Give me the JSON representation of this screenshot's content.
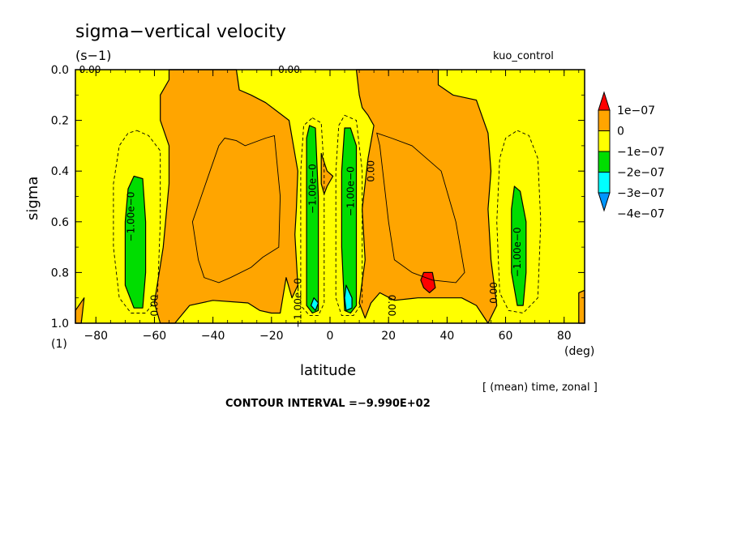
{
  "chart_data": {
    "type": "heatmap",
    "title": "sigma−vertical velocity",
    "units": "(s−1)",
    "experiment": "kuo_control",
    "xlabel": "latitude",
    "xunits": "(deg)",
    "ylabel": "sigma",
    "yunits": "(1)",
    "xlim": [
      -87,
      87
    ],
    "ylim": [
      0.0,
      1.0
    ],
    "y_inverted": true,
    "xticks": [
      -80,
      -60,
      -40,
      -20,
      0,
      20,
      40,
      60,
      80
    ],
    "yticks": [
      0.0,
      0.2,
      0.4,
      0.6,
      0.8,
      1.0
    ],
    "xtick_labels": [
      "−80",
      "−60",
      "−40",
      "−20",
      "0",
      "20",
      "40",
      "60",
      "80"
    ],
    "ytick_labels": [
      "0.0",
      "0.2",
      "0.4",
      "0.6",
      "0.8",
      "1.0"
    ],
    "averaging_note": "[ (mean) time, zonal ]",
    "contour_interval": "CONTOUR INTERVAL =−9.990E+02",
    "colorbar": {
      "levels": [
        "1e−07",
        "0",
        "−1e−07",
        "−2e−07",
        "−3e−07",
        "−4e−07"
      ],
      "colors": {
        "gt_1e-7": "#ff0000",
        "0_to_1e-7": "#ffa500",
        "m1e-7_to_0": "#ffff00",
        "m2e-7_to_m1e-7": "#00dd00",
        "m3e-7_to_m2e-7": "#00ffff",
        "lt_m3e-7": "#0096ff"
      }
    },
    "contour_labels": [
      "0.00",
      "0.00",
      "−1.00e−0",
      "−1.00e−0",
      "−1.00e−0",
      "0.00",
      "−1.00e−0",
      "0.00",
      "0.00",
      "0.00",
      "0.00",
      "−1.00e−0"
    ],
    "regions": [
      {
        "fill": "0_to_1e-7",
        "poly": [
          [
            -87,
            0.95
          ],
          [
            -84,
            0.9
          ],
          [
            -85,
            1.0
          ],
          [
            -87,
            1.0
          ]
        ]
      },
      {
        "fill": "0_to_1e-7",
        "poly": [
          [
            -55,
            0
          ],
          [
            -32,
            0
          ],
          [
            -31,
            0.08
          ],
          [
            -27,
            0.1
          ],
          [
            -22,
            0.13
          ],
          [
            -14,
            0.2
          ],
          [
            -11,
            0.4
          ],
          [
            -11.5,
            0.55
          ],
          [
            -12,
            0.65
          ],
          [
            -11,
            0.85
          ],
          [
            -13,
            0.9
          ],
          [
            -15,
            0.82
          ],
          [
            -17,
            0.96
          ],
          [
            -20,
            0.96
          ],
          [
            -24,
            0.95
          ],
          [
            -28,
            0.92
          ],
          [
            -40,
            0.91
          ],
          [
            -48,
            0.93
          ],
          [
            -53,
            1.0
          ],
          [
            -58,
            1.0
          ],
          [
            -60,
            0.92
          ],
          [
            -57,
            0.7
          ],
          [
            -55,
            0.45
          ],
          [
            -55,
            0.3
          ],
          [
            -58,
            0.2
          ],
          [
            -58,
            0.1
          ],
          [
            -55,
            0.04
          ]
        ]
      },
      {
        "fill": "0_to_1e-7",
        "poly": [
          [
            9,
            0.0
          ],
          [
            37,
            0.0
          ],
          [
            37,
            0.06
          ],
          [
            42,
            0.1
          ],
          [
            50,
            0.12
          ],
          [
            54,
            0.25
          ],
          [
            55,
            0.4
          ],
          [
            54,
            0.55
          ],
          [
            55,
            0.75
          ],
          [
            57,
            0.93
          ],
          [
            54,
            1.0
          ],
          [
            50,
            0.93
          ],
          [
            45,
            0.9
          ],
          [
            38,
            0.9
          ],
          [
            30,
            0.9
          ],
          [
            22,
            0.91
          ],
          [
            17,
            0.88
          ],
          [
            14,
            0.92
          ],
          [
            12,
            0.98
          ],
          [
            10,
            0.92
          ],
          [
            12,
            0.75
          ],
          [
            11,
            0.55
          ],
          [
            13,
            0.35
          ],
          [
            15,
            0.22
          ],
          [
            13,
            0.18
          ],
          [
            11,
            0.15
          ],
          [
            10,
            0.1
          ]
        ]
      },
      {
        "fill": "0_to_1e-7",
        "poly": [
          [
            -3,
            0.33
          ],
          [
            -1,
            0.4
          ],
          [
            1,
            0.42
          ],
          [
            -1,
            0.46
          ],
          [
            -2,
            0.49
          ],
          [
            -3,
            0.45
          ]
        ]
      },
      {
        "fill": "0_to_1e-7",
        "poly": [
          [
            85,
            0.88
          ],
          [
            87,
            0.87
          ],
          [
            87,
            1.0
          ],
          [
            85,
            1.0
          ]
        ]
      },
      {
        "fill": "m2e-7_to_m1e-7",
        "poly": [
          [
            -67,
            0.42
          ],
          [
            -64,
            0.43
          ],
          [
            -63,
            0.6
          ],
          [
            -63,
            0.8
          ],
          [
            -64,
            0.94
          ],
          [
            -67,
            0.94
          ],
          [
            -70,
            0.85
          ],
          [
            -70,
            0.6
          ],
          [
            -69,
            0.47
          ]
        ]
      },
      {
        "fill": "m2e-7_to_m1e-7",
        "poly": [
          [
            -7,
            0.22
          ],
          [
            -5,
            0.23
          ],
          [
            -4,
            0.5
          ],
          [
            -4,
            0.8
          ],
          [
            -4,
            0.95
          ],
          [
            -6,
            0.96
          ],
          [
            -8,
            0.93
          ],
          [
            -8,
            0.7
          ],
          [
            -8,
            0.4
          ],
          [
            -8,
            0.27
          ]
        ]
      },
      {
        "fill": "m2e-7_to_m1e-7",
        "poly": [
          [
            5,
            0.23
          ],
          [
            7,
            0.23
          ],
          [
            9,
            0.3
          ],
          [
            9,
            0.7
          ],
          [
            9,
            0.93
          ],
          [
            7,
            0.96
          ],
          [
            5,
            0.95
          ],
          [
            4,
            0.7
          ],
          [
            4,
            0.4
          ]
        ]
      },
      {
        "fill": "m2e-7_to_m1e-7",
        "poly": [
          [
            63,
            0.46
          ],
          [
            65,
            0.48
          ],
          [
            67,
            0.6
          ],
          [
            67,
            0.8
          ],
          [
            66,
            0.93
          ],
          [
            64,
            0.93
          ],
          [
            62,
            0.8
          ],
          [
            62,
            0.55
          ]
        ]
      },
      {
        "fill": "m3e-7_to_m2e-7",
        "poly": [
          [
            -5.5,
            0.9
          ],
          [
            -4,
            0.92
          ],
          [
            -5,
            0.95
          ],
          [
            -6.5,
            0.93
          ]
        ]
      },
      {
        "fill": "m3e-7_to_m2e-7",
        "poly": [
          [
            5.5,
            0.85
          ],
          [
            7.5,
            0.9
          ],
          [
            7.5,
            0.94
          ],
          [
            5.5,
            0.95
          ],
          [
            5,
            0.9
          ]
        ]
      },
      {
        "fill": "gt_1e-7",
        "poly": [
          [
            32,
            0.8
          ],
          [
            35,
            0.8
          ],
          [
            36,
            0.86
          ],
          [
            34,
            0.88
          ],
          [
            32,
            0.86
          ],
          [
            31,
            0.83
          ]
        ]
      }
    ],
    "contours": [
      {
        "style": "solid",
        "poly": [
          [
            -36,
            0.27
          ],
          [
            -32,
            0.28
          ],
          [
            -29,
            0.3
          ],
          [
            -22,
            0.27
          ],
          [
            -19,
            0.26
          ],
          [
            -17,
            0.5
          ],
          [
            -17.5,
            0.7
          ],
          [
            -23,
            0.74
          ],
          [
            -27,
            0.78
          ],
          [
            -34,
            0.82
          ],
          [
            -38,
            0.84
          ],
          [
            -43,
            0.82
          ],
          [
            -45,
            0.75
          ],
          [
            -47,
            0.6
          ],
          [
            -44,
            0.5
          ],
          [
            -41,
            0.4
          ],
          [
            -38,
            0.3
          ]
        ]
      },
      {
        "style": "solid",
        "poly": [
          [
            16,
            0.25
          ],
          [
            21,
            0.27
          ],
          [
            28,
            0.3
          ],
          [
            38,
            0.4
          ],
          [
            43,
            0.6
          ],
          [
            46,
            0.8
          ],
          [
            43,
            0.84
          ],
          [
            35,
            0.83
          ],
          [
            28,
            0.8
          ],
          [
            22,
            0.75
          ],
          [
            20,
            0.6
          ],
          [
            18,
            0.4
          ],
          [
            17,
            0.3
          ]
        ]
      },
      {
        "style": "dashed",
        "poly": [
          [
            -66,
            0.24
          ],
          [
            -62,
            0.26
          ],
          [
            -58,
            0.32
          ],
          [
            -58,
            0.6
          ],
          [
            -59,
            0.9
          ],
          [
            -63,
            0.96
          ],
          [
            -68,
            0.96
          ],
          [
            -72,
            0.9
          ],
          [
            -74,
            0.7
          ],
          [
            -74,
            0.45
          ],
          [
            -72,
            0.3
          ],
          [
            -69,
            0.25
          ]
        ]
      },
      {
        "style": "dashed",
        "poly": [
          [
            -6,
            0.19
          ],
          [
            -3,
            0.21
          ],
          [
            -2,
            0.4
          ],
          [
            -2,
            0.92
          ],
          [
            -4,
            0.97
          ],
          [
            -7,
            0.97
          ],
          [
            -10,
            0.93
          ],
          [
            -10,
            0.4
          ],
          [
            -9,
            0.22
          ]
        ]
      },
      {
        "style": "dashed",
        "poly": [
          [
            5,
            0.18
          ],
          [
            9,
            0.2
          ],
          [
            11,
            0.4
          ],
          [
            11,
            0.92
          ],
          [
            8,
            0.97
          ],
          [
            4,
            0.97
          ],
          [
            2,
            0.9
          ],
          [
            2,
            0.4
          ],
          [
            3,
            0.22
          ]
        ]
      },
      {
        "style": "dashed",
        "poly": [
          [
            64,
            0.24
          ],
          [
            68,
            0.26
          ],
          [
            71,
            0.35
          ],
          [
            72,
            0.6
          ],
          [
            71,
            0.9
          ],
          [
            66,
            0.96
          ],
          [
            61,
            0.95
          ],
          [
            58,
            0.88
          ],
          [
            57,
            0.6
          ],
          [
            58,
            0.35
          ],
          [
            60,
            0.27
          ]
        ]
      }
    ]
  }
}
